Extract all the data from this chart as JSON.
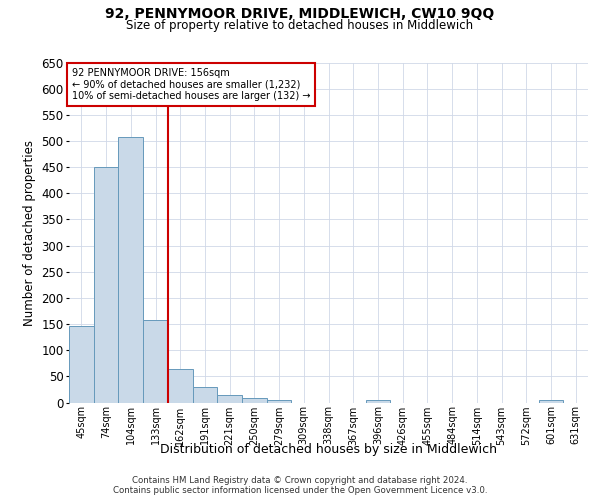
{
  "title1": "92, PENNYMOOR DRIVE, MIDDLEWICH, CW10 9QQ",
  "title2": "Size of property relative to detached houses in Middlewich",
  "xlabel": "Distribution of detached houses by size in Middlewich",
  "ylabel": "Number of detached properties",
  "footer1": "Contains HM Land Registry data © Crown copyright and database right 2024.",
  "footer2": "Contains public sector information licensed under the Open Government Licence v3.0.",
  "annotation_line1": "92 PENNYMOOR DRIVE: 156sqm",
  "annotation_line2": "← 90% of detached houses are smaller (1,232)",
  "annotation_line3": "10% of semi-detached houses are larger (132) →",
  "bar_color": "#c9d9e8",
  "bar_edge_color": "#6699bb",
  "red_line_color": "#cc0000",
  "annotation_box_color": "#cc0000",
  "grid_color": "#d0d8e8",
  "categories": [
    "45sqm",
    "74sqm",
    "104sqm",
    "133sqm",
    "162sqm",
    "191sqm",
    "221sqm",
    "250sqm",
    "279sqm",
    "309sqm",
    "338sqm",
    "367sqm",
    "396sqm",
    "426sqm",
    "455sqm",
    "484sqm",
    "514sqm",
    "543sqm",
    "572sqm",
    "601sqm",
    "631sqm"
  ],
  "values": [
    147,
    450,
    508,
    158,
    65,
    30,
    14,
    9,
    5,
    0,
    0,
    0,
    5,
    0,
    0,
    0,
    0,
    0,
    0,
    5,
    0
  ],
  "red_line_x": 3.5,
  "ylim": [
    0,
    650
  ],
  "yticks": [
    0,
    50,
    100,
    150,
    200,
    250,
    300,
    350,
    400,
    450,
    500,
    550,
    600,
    650
  ]
}
